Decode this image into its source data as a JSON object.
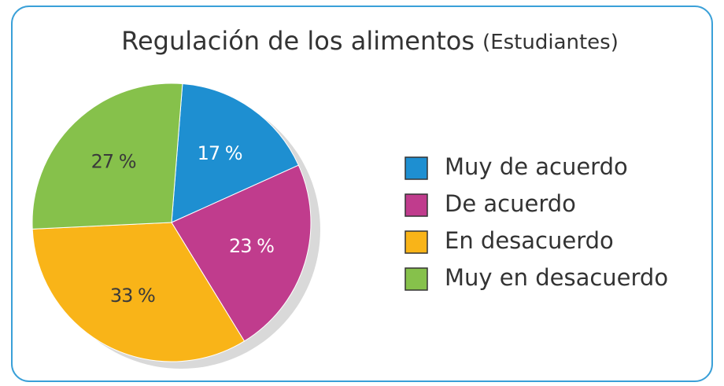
{
  "chart_data": {
    "type": "pie",
    "title": "Regulación de los alimentos",
    "subtitle": "(Estudiantes)",
    "categories": [
      "Muy de acuerdo",
      "De acuerdo",
      "En desacuerdo",
      "Muy en desacuerdo"
    ],
    "values": [
      17,
      23,
      33,
      27
    ],
    "value_labels": [
      "17 %",
      "23 %",
      "33 %",
      "27 %"
    ],
    "colors": [
      "#1e8fd1",
      "#c03c8d",
      "#f9b418",
      "#86c14b"
    ],
    "label_colors": [
      "#ffffff",
      "#ffffff",
      "#3a3a3a",
      "#3a3a3a"
    ],
    "legend": "right"
  }
}
